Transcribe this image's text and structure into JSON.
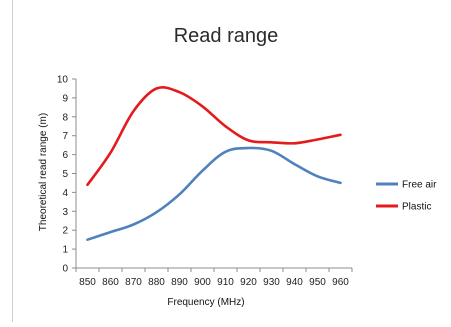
{
  "chart_data": {
    "type": "line",
    "title": "Read range",
    "xlabel": "Frequency (MHz)",
    "ylabel": "Theoretical read range (m)",
    "x": [
      850,
      860,
      870,
      880,
      890,
      900,
      910,
      920,
      930,
      940,
      950,
      960
    ],
    "x_tick_labels": [
      "850",
      "860",
      "870",
      "880",
      "890",
      "900",
      "910",
      "920",
      "930",
      "940",
      "950",
      "960"
    ],
    "ylim": [
      0,
      10
    ],
    "y_tick_labels": [
      "0",
      "1",
      "2",
      "3",
      "4",
      "5",
      "6",
      "7",
      "8",
      "9",
      "10"
    ],
    "grid": false,
    "legend_position": "right",
    "series": [
      {
        "name": "Free air",
        "color": "#4f81bd",
        "values": [
          1.5,
          1.9,
          2.3,
          2.95,
          3.9,
          5.15,
          6.15,
          6.35,
          6.2,
          5.5,
          4.85,
          4.5
        ]
      },
      {
        "name": "Plastic",
        "color": "#e41a1c",
        "values": [
          4.4,
          6.1,
          8.3,
          9.5,
          9.3,
          8.55,
          7.5,
          6.75,
          6.65,
          6.6,
          6.8,
          7.05
        ]
      }
    ]
  }
}
